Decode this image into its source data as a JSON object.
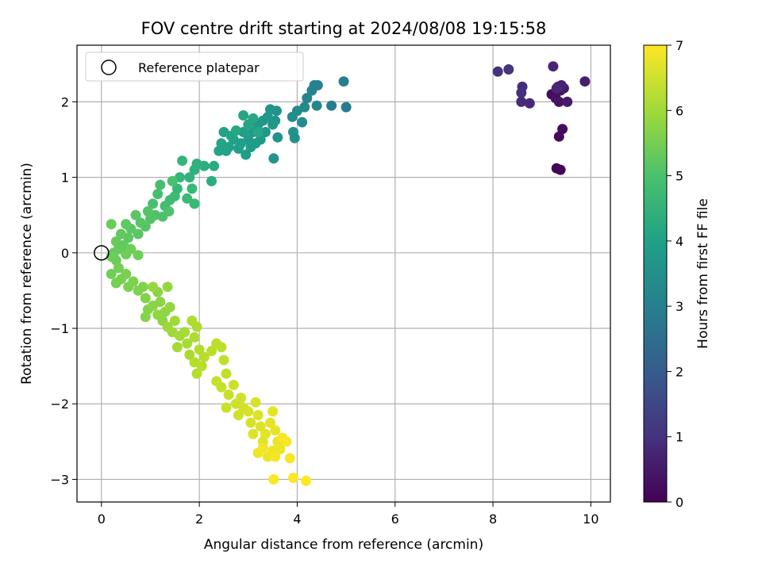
{
  "chart_data": {
    "type": "scatter",
    "title": "FOV centre drift starting at 2024/08/08 19:15:58",
    "xlabel": "Angular distance from reference (arcmin)",
    "ylabel": "Rotation from reference (arcmin)",
    "xlim": [
      -0.5,
      10.4
    ],
    "ylim": [
      -3.3,
      2.75
    ],
    "xticks": [
      0,
      2,
      4,
      6,
      8,
      10
    ],
    "xtick_labels": [
      "0",
      "2",
      "4",
      "6",
      "8",
      "10"
    ],
    "yticks": [
      -3,
      -2,
      -1,
      0,
      1,
      2
    ],
    "ytick_labels": [
      "−3",
      "−2",
      "−1",
      "0",
      "1",
      "2"
    ],
    "grid": true,
    "legend": {
      "placement": "top-left",
      "entries": [
        "Reference platepar"
      ]
    },
    "reference_point": {
      "x": 0,
      "y": 0,
      "marker": "open-circle"
    },
    "colorbar": {
      "label": "Hours from first FF file",
      "colormap": "viridis",
      "range": [
        0,
        7
      ],
      "ticks": [
        0,
        1,
        2,
        3,
        4,
        5,
        6,
        7
      ],
      "tick_labels": [
        "0",
        "1",
        "2",
        "3",
        "4",
        "5",
        "6",
        "7"
      ]
    },
    "points": [
      {
        "x": 9.3,
        "y": 1.12,
        "c": 0.05
      },
      {
        "x": 9.38,
        "y": 1.1,
        "c": 0.1
      },
      {
        "x": 9.35,
        "y": 1.54,
        "c": 0.15
      },
      {
        "x": 9.42,
        "y": 1.64,
        "c": 0.2
      },
      {
        "x": 9.2,
        "y": 2.1,
        "c": 0.25
      },
      {
        "x": 9.28,
        "y": 2.05,
        "c": 0.3
      },
      {
        "x": 9.35,
        "y": 2.0,
        "c": 0.35
      },
      {
        "x": 9.38,
        "y": 2.15,
        "c": 0.4
      },
      {
        "x": 9.45,
        "y": 2.18,
        "c": 0.45
      },
      {
        "x": 9.52,
        "y": 2.0,
        "c": 0.5
      },
      {
        "x": 9.88,
        "y": 2.27,
        "c": 0.55
      },
      {
        "x": 9.33,
        "y": 2.2,
        "c": 0.6
      },
      {
        "x": 9.4,
        "y": 2.22,
        "c": 0.65
      },
      {
        "x": 9.23,
        "y": 2.47,
        "c": 0.7
      },
      {
        "x": 9.3,
        "y": 2.18,
        "c": 0.75
      },
      {
        "x": 8.75,
        "y": 1.98,
        "c": 0.8
      },
      {
        "x": 8.58,
        "y": 2.0,
        "c": 0.85
      },
      {
        "x": 8.6,
        "y": 2.2,
        "c": 0.9
      },
      {
        "x": 8.58,
        "y": 2.12,
        "c": 0.95
      },
      {
        "x": 8.1,
        "y": 2.4,
        "c": 1.0
      },
      {
        "x": 8.32,
        "y": 2.43,
        "c": 1.05
      },
      {
        "x": 5.0,
        "y": 1.93,
        "c": 2.9
      },
      {
        "x": 4.7,
        "y": 1.95,
        "c": 2.95
      },
      {
        "x": 4.95,
        "y": 2.27,
        "c": 3.0
      },
      {
        "x": 4.42,
        "y": 2.22,
        "c": 3.05
      },
      {
        "x": 4.35,
        "y": 2.22,
        "c": 3.1
      },
      {
        "x": 4.3,
        "y": 2.15,
        "c": 3.15
      },
      {
        "x": 4.2,
        "y": 2.05,
        "c": 3.2
      },
      {
        "x": 4.4,
        "y": 1.95,
        "c": 3.25
      },
      {
        "x": 4.15,
        "y": 1.93,
        "c": 3.3
      },
      {
        "x": 4.0,
        "y": 1.88,
        "c": 3.35
      },
      {
        "x": 4.1,
        "y": 1.73,
        "c": 3.4
      },
      {
        "x": 3.9,
        "y": 1.8,
        "c": 3.45
      },
      {
        "x": 3.92,
        "y": 1.6,
        "c": 3.5
      },
      {
        "x": 3.95,
        "y": 1.52,
        "c": 3.52
      },
      {
        "x": 3.58,
        "y": 1.88,
        "c": 3.55
      },
      {
        "x": 3.6,
        "y": 1.53,
        "c": 3.58
      },
      {
        "x": 3.52,
        "y": 1.25,
        "c": 3.6
      },
      {
        "x": 3.55,
        "y": 1.75,
        "c": 3.62
      },
      {
        "x": 3.45,
        "y": 1.9,
        "c": 3.65
      },
      {
        "x": 3.4,
        "y": 1.8,
        "c": 3.68
      },
      {
        "x": 3.5,
        "y": 1.7,
        "c": 3.7
      },
      {
        "x": 3.3,
        "y": 1.75,
        "c": 3.72
      },
      {
        "x": 3.35,
        "y": 1.6,
        "c": 3.74
      },
      {
        "x": 3.2,
        "y": 1.7,
        "c": 3.76
      },
      {
        "x": 3.25,
        "y": 1.5,
        "c": 3.78
      },
      {
        "x": 3.1,
        "y": 1.6,
        "c": 3.8
      },
      {
        "x": 3.15,
        "y": 1.45,
        "c": 3.82
      },
      {
        "x": 3.0,
        "y": 1.5,
        "c": 3.84
      },
      {
        "x": 3.05,
        "y": 1.4,
        "c": 3.86
      },
      {
        "x": 2.95,
        "y": 1.3,
        "c": 3.88
      },
      {
        "x": 2.9,
        "y": 1.6,
        "c": 3.9
      },
      {
        "x": 2.85,
        "y": 1.45,
        "c": 3.92
      },
      {
        "x": 2.8,
        "y": 1.38,
        "c": 3.94
      },
      {
        "x": 2.7,
        "y": 1.5,
        "c": 3.96
      },
      {
        "x": 2.6,
        "y": 1.4,
        "c": 3.98
      },
      {
        "x": 2.55,
        "y": 1.35,
        "c": 4.0
      },
      {
        "x": 2.5,
        "y": 1.6,
        "c": 4.02
      },
      {
        "x": 2.65,
        "y": 1.55,
        "c": 4.04
      },
      {
        "x": 2.45,
        "y": 1.45,
        "c": 4.06
      },
      {
        "x": 2.4,
        "y": 1.35,
        "c": 4.08
      },
      {
        "x": 2.9,
        "y": 1.82,
        "c": 4.1
      },
      {
        "x": 3.0,
        "y": 1.7,
        "c": 4.12
      },
      {
        "x": 3.1,
        "y": 1.78,
        "c": 4.14
      },
      {
        "x": 2.75,
        "y": 1.62,
        "c": 4.16
      },
      {
        "x": 3.2,
        "y": 1.6,
        "c": 4.18
      },
      {
        "x": 2.3,
        "y": 1.15,
        "c": 4.3
      },
      {
        "x": 2.25,
        "y": 0.95,
        "c": 4.35
      },
      {
        "x": 2.1,
        "y": 1.15,
        "c": 4.4
      },
      {
        "x": 1.95,
        "y": 1.18,
        "c": 4.45
      },
      {
        "x": 1.9,
        "y": 1.1,
        "c": 4.5
      },
      {
        "x": 1.8,
        "y": 1.0,
        "c": 4.55
      },
      {
        "x": 1.65,
        "y": 1.22,
        "c": 4.6
      },
      {
        "x": 1.6,
        "y": 1.0,
        "c": 4.63
      },
      {
        "x": 1.55,
        "y": 0.85,
        "c": 4.66
      },
      {
        "x": 1.85,
        "y": 0.85,
        "c": 4.69
      },
      {
        "x": 1.9,
        "y": 0.65,
        "c": 4.72
      },
      {
        "x": 1.75,
        "y": 0.72,
        "c": 4.75
      },
      {
        "x": 1.5,
        "y": 0.75,
        "c": 4.78
      },
      {
        "x": 1.4,
        "y": 0.7,
        "c": 4.81
      },
      {
        "x": 1.3,
        "y": 0.62,
        "c": 4.84
      },
      {
        "x": 1.2,
        "y": 0.9,
        "c": 4.87
      },
      {
        "x": 1.15,
        "y": 0.78,
        "c": 4.9
      },
      {
        "x": 1.05,
        "y": 0.65,
        "c": 4.93
      },
      {
        "x": 1.45,
        "y": 0.95,
        "c": 4.96
      },
      {
        "x": 1.38,
        "y": 0.55,
        "c": 4.99
      },
      {
        "x": 1.25,
        "y": 0.48,
        "c": 5.02
      },
      {
        "x": 1.1,
        "y": 0.5,
        "c": 5.05
      },
      {
        "x": 1.0,
        "y": 0.45,
        "c": 5.08
      },
      {
        "x": 0.95,
        "y": 0.55,
        "c": 5.1
      },
      {
        "x": 0.9,
        "y": 0.35,
        "c": 5.12
      },
      {
        "x": 0.8,
        "y": 0.4,
        "c": 5.14
      },
      {
        "x": 0.75,
        "y": 0.25,
        "c": 5.16
      },
      {
        "x": 0.7,
        "y": 0.5,
        "c": 5.18
      },
      {
        "x": 0.6,
        "y": 0.32,
        "c": 5.2
      },
      {
        "x": 0.55,
        "y": 0.2,
        "c": 5.22
      },
      {
        "x": 0.5,
        "y": 0.38,
        "c": 5.24
      },
      {
        "x": 0.45,
        "y": 0.1,
        "c": 5.26
      },
      {
        "x": 0.4,
        "y": 0.25,
        "c": 5.28
      },
      {
        "x": 0.35,
        "y": 0.05,
        "c": 5.3
      },
      {
        "x": 0.3,
        "y": 0.15,
        "c": 5.32
      },
      {
        "x": 0.25,
        "y": 0.0,
        "c": 5.34
      },
      {
        "x": 0.2,
        "y": 0.38,
        "c": 5.36
      },
      {
        "x": 0.3,
        "y": -0.1,
        "c": 5.38
      },
      {
        "x": 0.2,
        "y": -0.05,
        "c": 5.4
      },
      {
        "x": 0.5,
        "y": -0.02,
        "c": 5.42
      },
      {
        "x": 0.6,
        "y": 0.05,
        "c": 5.44
      },
      {
        "x": 0.75,
        "y": -0.03,
        "c": 5.46
      },
      {
        "x": 0.2,
        "y": -0.28,
        "c": 5.48
      },
      {
        "x": 0.35,
        "y": -0.2,
        "c": 5.5
      },
      {
        "x": 0.3,
        "y": -0.4,
        "c": 5.52
      },
      {
        "x": 0.4,
        "y": -0.35,
        "c": 5.54
      },
      {
        "x": 0.5,
        "y": -0.28,
        "c": 5.56
      },
      {
        "x": 0.55,
        "y": -0.45,
        "c": 5.58
      },
      {
        "x": 0.65,
        "y": -0.38,
        "c": 5.6
      },
      {
        "x": 0.75,
        "y": -0.5,
        "c": 5.62
      },
      {
        "x": 0.85,
        "y": -0.45,
        "c": 5.64
      },
      {
        "x": 0.9,
        "y": -0.6,
        "c": 5.66
      },
      {
        "x": 0.95,
        "y": -0.75,
        "c": 5.68
      },
      {
        "x": 0.9,
        "y": -0.85,
        "c": 5.7
      },
      {
        "x": 1.05,
        "y": -0.7,
        "c": 5.72
      },
      {
        "x": 1.15,
        "y": -0.52,
        "c": 5.74
      },
      {
        "x": 1.2,
        "y": -0.65,
        "c": 5.76
      },
      {
        "x": 1.3,
        "y": -0.78,
        "c": 5.78
      },
      {
        "x": 1.25,
        "y": -0.9,
        "c": 5.8
      },
      {
        "x": 1.15,
        "y": -0.82,
        "c": 5.82
      },
      {
        "x": 1.4,
        "y": -0.72,
        "c": 5.84
      },
      {
        "x": 1.35,
        "y": -0.45,
        "c": 5.86
      },
      {
        "x": 1.05,
        "y": -0.45,
        "c": 5.88
      },
      {
        "x": 1.35,
        "y": -0.98,
        "c": 5.95
      },
      {
        "x": 1.45,
        "y": -1.05,
        "c": 5.98
      },
      {
        "x": 1.5,
        "y": -0.9,
        "c": 6.0
      },
      {
        "x": 1.6,
        "y": -1.1,
        "c": 6.02
      },
      {
        "x": 1.55,
        "y": -1.25,
        "c": 6.04
      },
      {
        "x": 1.7,
        "y": -1.05,
        "c": 6.06
      },
      {
        "x": 1.75,
        "y": -1.2,
        "c": 6.08
      },
      {
        "x": 1.8,
        "y": -1.35,
        "c": 6.1
      },
      {
        "x": 1.9,
        "y": -1.12,
        "c": 6.12
      },
      {
        "x": 1.95,
        "y": -0.98,
        "c": 6.14
      },
      {
        "x": 1.85,
        "y": -0.9,
        "c": 6.16
      },
      {
        "x": 2.0,
        "y": -1.28,
        "c": 6.18
      },
      {
        "x": 1.9,
        "y": -1.45,
        "c": 6.2
      },
      {
        "x": 1.95,
        "y": -1.6,
        "c": 6.22
      },
      {
        "x": 2.05,
        "y": -1.5,
        "c": 6.24
      },
      {
        "x": 2.1,
        "y": -1.38,
        "c": 6.26
      },
      {
        "x": 2.25,
        "y": -1.3,
        "c": 6.28
      },
      {
        "x": 2.35,
        "y": -1.2,
        "c": 6.3
      },
      {
        "x": 2.45,
        "y": -1.25,
        "c": 6.32
      },
      {
        "x": 2.5,
        "y": -1.42,
        "c": 6.34
      },
      {
        "x": 2.55,
        "y": -1.6,
        "c": 6.36
      },
      {
        "x": 2.35,
        "y": -1.7,
        "c": 6.38
      },
      {
        "x": 2.45,
        "y": -1.78,
        "c": 6.4
      },
      {
        "x": 2.6,
        "y": -1.88,
        "c": 6.42
      },
      {
        "x": 2.55,
        "y": -2.05,
        "c": 6.44
      },
      {
        "x": 2.7,
        "y": -1.75,
        "c": 6.46
      },
      {
        "x": 2.75,
        "y": -2.0,
        "c": 6.48
      },
      {
        "x": 2.85,
        "y": -1.92,
        "c": 6.5
      },
      {
        "x": 2.8,
        "y": -2.15,
        "c": 6.52
      },
      {
        "x": 2.9,
        "y": -2.05,
        "c": 6.54
      },
      {
        "x": 3.0,
        "y": -2.1,
        "c": 6.56
      },
      {
        "x": 3.05,
        "y": -2.25,
        "c": 6.58
      },
      {
        "x": 3.15,
        "y": -1.98,
        "c": 6.6
      },
      {
        "x": 3.2,
        "y": -2.15,
        "c": 6.62
      },
      {
        "x": 3.1,
        "y": -2.4,
        "c": 6.64
      },
      {
        "x": 3.25,
        "y": -2.3,
        "c": 6.66
      },
      {
        "x": 3.3,
        "y": -2.5,
        "c": 6.68
      },
      {
        "x": 3.35,
        "y": -2.4,
        "c": 6.7
      },
      {
        "x": 3.45,
        "y": -2.25,
        "c": 6.72
      },
      {
        "x": 3.5,
        "y": -2.1,
        "c": 6.74
      },
      {
        "x": 3.55,
        "y": -2.35,
        "c": 6.76
      },
      {
        "x": 3.6,
        "y": -2.5,
        "c": 6.78
      },
      {
        "x": 3.65,
        "y": -2.6,
        "c": 6.8
      },
      {
        "x": 3.5,
        "y": -2.62,
        "c": 6.82
      },
      {
        "x": 3.4,
        "y": -2.7,
        "c": 6.84
      },
      {
        "x": 3.2,
        "y": -2.65,
        "c": 6.86
      },
      {
        "x": 3.3,
        "y": -2.58,
        "c": 6.88
      },
      {
        "x": 3.55,
        "y": -2.7,
        "c": 6.9
      },
      {
        "x": 3.7,
        "y": -2.45,
        "c": 6.92
      },
      {
        "x": 3.78,
        "y": -2.5,
        "c": 6.94
      },
      {
        "x": 3.85,
        "y": -2.72,
        "c": 6.95
      },
      {
        "x": 3.52,
        "y": -3.0,
        "c": 6.97
      },
      {
        "x": 3.92,
        "y": -2.98,
        "c": 6.98
      },
      {
        "x": 4.18,
        "y": -3.02,
        "c": 7.0
      }
    ]
  }
}
